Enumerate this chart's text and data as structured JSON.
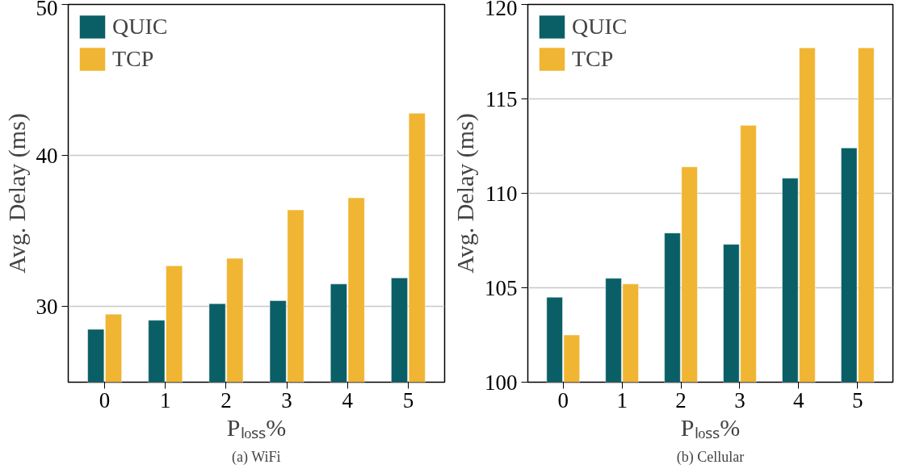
{
  "chart_data": [
    {
      "type": "bar",
      "categories": [
        "0",
        "1",
        "2",
        "3",
        "4",
        "5"
      ],
      "xlabel": "Pₗₒₛₛ%",
      "ylabel": "Avg. Delay (ms)",
      "ylim": [
        25,
        50
      ],
      "yticks": [
        30,
        40,
        50
      ],
      "grid": "y",
      "legend": "top left",
      "annotations": [
        "(a) WiFi"
      ],
      "series": [
        {
          "name": "QUIC",
          "color": "#0a5f66",
          "values": [
            28.5,
            29.1,
            30.2,
            30.4,
            31.5,
            31.9
          ]
        },
        {
          "name": "TCP",
          "color": "#f0b532",
          "values": [
            29.5,
            32.7,
            33.2,
            36.4,
            37.2,
            42.8
          ]
        }
      ]
    },
    {
      "type": "bar",
      "categories": [
        "0",
        "1",
        "2",
        "3",
        "4",
        "5"
      ],
      "xlabel": "Pₗₒₛₛ%",
      "ylabel": "Avg. Delay (ms)",
      "ylim": [
        100,
        120
      ],
      "yticks": [
        100,
        105,
        110,
        115,
        120
      ],
      "grid": "y",
      "legend": "top left",
      "annotations": [
        "(b) Cellular"
      ],
      "series": [
        {
          "name": "QUIC",
          "color": "#0a5f66",
          "values": [
            104.5,
            105.5,
            107.9,
            107.3,
            110.8,
            112.4
          ]
        },
        {
          "name": "TCP",
          "color": "#f0b532",
          "values": [
            102.5,
            105.2,
            111.4,
            113.6,
            117.7,
            117.7
          ]
        }
      ]
    }
  ]
}
